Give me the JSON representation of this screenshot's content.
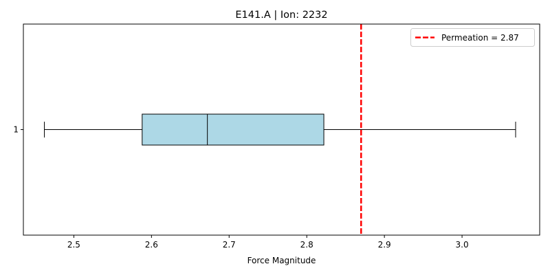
{
  "chart_data": {
    "type": "boxplot",
    "orientation": "horizontal",
    "title": "E141.A | Ion: 2232",
    "xlabel": "Force Magnitude",
    "ylabel": "",
    "xlim": [
      2.435,
      3.1
    ],
    "xticks": [
      2.5,
      2.6,
      2.7,
      2.8,
      2.9,
      3.0
    ],
    "xtick_labels": [
      "2.5",
      "2.6",
      "2.7",
      "2.8",
      "2.9",
      "3.0"
    ],
    "ytick_labels": [
      "1"
    ],
    "grid": false,
    "boxes": [
      {
        "category": "1",
        "whisker_low": 2.462,
        "q1": 2.588,
        "median": 2.672,
        "q3": 2.822,
        "whisker_high": 3.069
      }
    ],
    "reference_line": {
      "value": 2.87,
      "color": "#ff0000",
      "style": "dashed"
    },
    "legend": {
      "placement": "top-right",
      "entries": [
        "Permeation = 2.87"
      ]
    },
    "box_color": "#add8e6"
  }
}
